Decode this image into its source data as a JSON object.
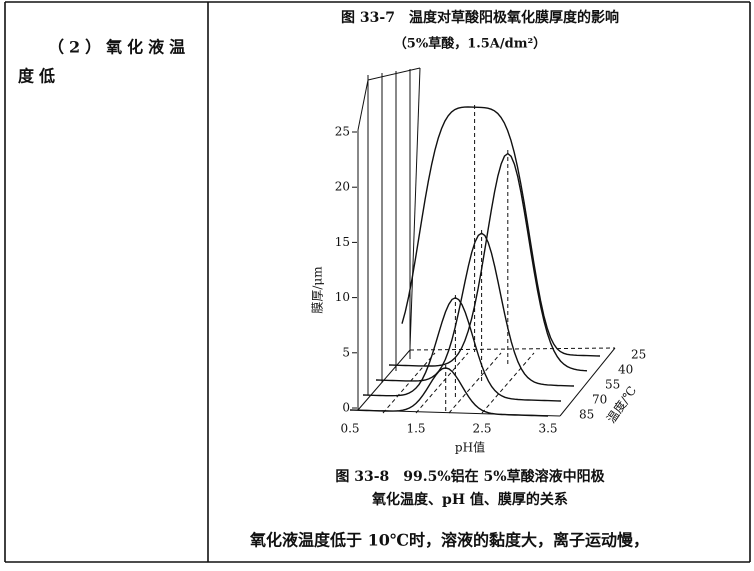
{
  "left_cell": {
    "lines": [
      "（2）氧化液温",
      "度低"
    ]
  },
  "right_cell": {
    "figure_top": {
      "title": "图 33-7　温度对草酸阳极氧化膜厚度的影响",
      "subtitle": "（5%草酸，1.5A/dm²）"
    },
    "plot": {
      "z_label": "膜厚/μm",
      "z_ticks": [
        0,
        5,
        10,
        15,
        20,
        25
      ],
      "x_label": "pH值",
      "x_ticks": [
        0.5,
        1.5,
        2.5,
        3.5
      ],
      "depth_label": "温度/℃",
      "depth_ticks": [
        25,
        40,
        55,
        70,
        85
      ]
    },
    "caption": [
      "图 33-8　99.5%铝在 5%草酸溶液中阳极",
      "氧化温度、pH 值、膜厚的关系"
    ],
    "body": "氧化液温度低于 10℃时，溶液的黏度大，离子运动慢，"
  }
}
